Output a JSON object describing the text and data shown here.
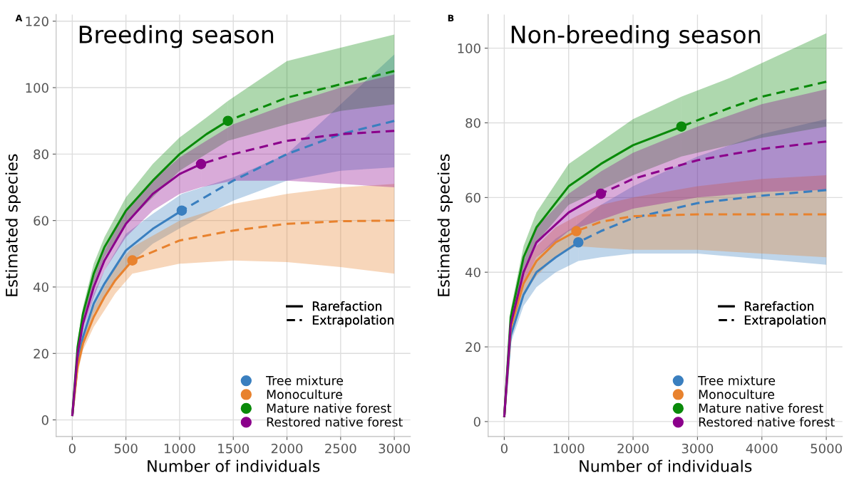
{
  "chart_data": [
    {
      "type": "line",
      "title": "Breeding season",
      "subtitle": "A",
      "xlabel": "Number of individuals",
      "ylabel": "Estimated species",
      "xlim": [
        -150,
        3150
      ],
      "ylim": [
        -5,
        122
      ],
      "xticks": [
        0,
        500,
        1000,
        1500,
        2000,
        2500,
        3000
      ],
      "yticks": [
        0,
        20,
        40,
        60,
        80,
        100,
        120
      ],
      "grid": true,
      "legend": "bottom right",
      "annotations": [
        "Rarefaction",
        "Extrapolation"
      ],
      "series": [
        {
          "name": "Tree mixture",
          "color": "#3a7fbf",
          "line_style": "solid",
          "x": [
            1,
            50,
            100,
            200,
            300,
            500,
            750,
            1020
          ],
          "values": [
            1.5,
            17,
            25,
            35,
            41,
            51,
            57.5,
            63
          ],
          "lower": [
            1.5,
            15,
            22,
            32,
            37,
            46,
            53,
            58
          ],
          "upper": [
            1.5,
            19,
            27,
            38,
            45,
            56,
            62,
            68
          ]
        },
        {
          "color": "#3a7fbf",
          "line_style": "dashed",
          "x": [
            1020,
            1500,
            2000,
            2500,
            3000
          ],
          "values": [
            63,
            72,
            80,
            86,
            90
          ],
          "lower": [
            58,
            66,
            72,
            75,
            76
          ],
          "upper": [
            68,
            73,
            80,
            95,
            110
          ]
        },
        {
          "type": "scatter",
          "color": "#3a7fbf",
          "marker": "circle",
          "x": [
            1020
          ],
          "values": [
            63
          ]
        },
        {
          "name": "Monoculture",
          "color": "#e8822e",
          "line_style": "solid",
          "x": [
            1,
            50,
            100,
            200,
            300,
            400,
            560
          ],
          "values": [
            1.5,
            16,
            23,
            31,
            37,
            42,
            48
          ],
          "lower": [
            1.5,
            14,
            21,
            28,
            33,
            38,
            44
          ],
          "upper": [
            1.5,
            18,
            25,
            34,
            40,
            46,
            52
          ]
        },
        {
          "color": "#e8822e",
          "line_style": "dashed",
          "x": [
            560,
            1000,
            1500,
            2000,
            2500,
            3000
          ],
          "values": [
            48,
            54,
            57,
            59,
            59.8,
            60
          ],
          "lower": [
            44,
            47,
            48,
            47.5,
            46,
            44
          ],
          "upper": [
            52,
            60,
            65,
            68,
            70,
            71
          ]
        },
        {
          "type": "scatter",
          "color": "#e8822e",
          "marker": "circle",
          "x": [
            560
          ],
          "values": [
            48
          ]
        },
        {
          "name": "Mature native forest",
          "color": "#0a8a0a",
          "line_style": "solid",
          "x": [
            1,
            50,
            100,
            200,
            300,
            500,
            750,
            1000,
            1250,
            1450
          ],
          "values": [
            1.5,
            22,
            32,
            44,
            52,
            63,
            72,
            80,
            86,
            90
          ],
          "lower": [
            1.5,
            20,
            30,
            41,
            49,
            59,
            67,
            75,
            80,
            84
          ],
          "upper": [
            1.5,
            24,
            34,
            47,
            55,
            67,
            77,
            85,
            91,
            96
          ]
        },
        {
          "color": "#0a8a0a",
          "line_style": "dashed",
          "x": [
            1450,
            2000,
            2500,
            3000
          ],
          "values": [
            90,
            97,
            101,
            105
          ],
          "lower": [
            84,
            89,
            93,
            95
          ],
          "upper": [
            96,
            108,
            112,
            116
          ]
        },
        {
          "type": "scatter",
          "color": "#0a8a0a",
          "marker": "circle",
          "x": [
            1450
          ],
          "values": [
            90
          ]
        },
        {
          "name": "Restored native forest",
          "color": "#8b008b",
          "line_style": "solid",
          "x": [
            1,
            50,
            100,
            200,
            300,
            500,
            750,
            1000,
            1200
          ],
          "values": [
            1.5,
            20,
            29,
            40,
            48,
            59,
            68,
            74,
            77
          ],
          "lower": [
            1.5,
            18,
            27,
            37,
            45,
            55,
            63,
            68,
            70
          ],
          "upper": [
            1.5,
            22,
            31,
            43,
            51,
            63,
            72,
            79,
            83
          ]
        },
        {
          "color": "#8b008b",
          "line_style": "dashed",
          "x": [
            1200,
            1500,
            2000,
            2500,
            3000
          ],
          "values": [
            77,
            80,
            84,
            86,
            87
          ],
          "lower": [
            70,
            72,
            72,
            71,
            70
          ],
          "upper": [
            83,
            89,
            95,
            100,
            104
          ]
        },
        {
          "type": "scatter",
          "color": "#8b008b",
          "marker": "circle",
          "x": [
            1200
          ],
          "values": [
            77
          ]
        }
      ]
    },
    {
      "type": "line",
      "title": "Non-breeding season",
      "subtitle": "B",
      "xlabel": "Number of individuals",
      "ylabel": "Estimated species",
      "xlim": [
        -250,
        5250
      ],
      "ylim": [
        -4,
        109
      ],
      "xticks": [
        0,
        1000,
        2000,
        3000,
        4000,
        5000
      ],
      "yticks": [
        0,
        20,
        40,
        60,
        80,
        100
      ],
      "grid": true,
      "legend": "bottom right",
      "annotations": [
        "Rarefaction",
        "Extrapolation"
      ],
      "series": [
        {
          "name": "Tree mixture",
          "color": "#3a7fbf",
          "line_style": "solid",
          "x": [
            1,
            100,
            300,
            500,
            800,
            1150
          ],
          "values": [
            1.5,
            23,
            34,
            40,
            44,
            48
          ],
          "lower": [
            1.5,
            21,
            31,
            36,
            40,
            43
          ],
          "upper": [
            1.5,
            25,
            37,
            44,
            49,
            53
          ]
        },
        {
          "color": "#3a7fbf",
          "line_style": "dashed",
          "x": [
            1150,
            1500,
            2000,
            3000,
            4000,
            5000
          ],
          "values": [
            48,
            51,
            54.5,
            58.5,
            60.5,
            62
          ],
          "lower": [
            43,
            44,
            45,
            45,
            43.5,
            42
          ],
          "upper": [
            53,
            58,
            63,
            71,
            77,
            81
          ]
        },
        {
          "type": "scatter",
          "color": "#3a7fbf",
          "marker": "circle",
          "x": [
            1150
          ],
          "values": [
            48
          ]
        },
        {
          "name": "Monoculture",
          "color": "#e8822e",
          "line_style": "solid",
          "x": [
            1,
            100,
            300,
            500,
            800,
            1120
          ],
          "values": [
            1.5,
            25,
            37,
            43,
            48,
            51
          ],
          "lower": [
            1.5,
            23,
            34,
            39,
            44,
            47
          ],
          "upper": [
            1.5,
            27,
            40,
            47,
            52,
            55
          ]
        },
        {
          "color": "#e8822e",
          "line_style": "dashed",
          "x": [
            1120,
            1500,
            2000,
            3000,
            4000,
            5000
          ],
          "values": [
            51,
            53.5,
            55,
            55.5,
            55.5,
            55.5
          ],
          "lower": [
            47,
            46.5,
            46,
            46,
            45,
            44
          ],
          "upper": [
            55,
            58,
            60,
            63,
            65,
            66
          ]
        },
        {
          "type": "scatter",
          "color": "#e8822e",
          "marker": "circle",
          "x": [
            1120
          ],
          "values": [
            51
          ]
        },
        {
          "name": "Mature native forest",
          "color": "#0a8a0a",
          "line_style": "solid",
          "x": [
            1,
            100,
            300,
            500,
            1000,
            1500,
            2000,
            2750
          ],
          "values": [
            1.5,
            28,
            44,
            52,
            63,
            69,
            74,
            79
          ],
          "lower": [
            1.5,
            26,
            41,
            48,
            58,
            62,
            66,
            71
          ],
          "upper": [
            1.5,
            30,
            47,
            56,
            69,
            75,
            81,
            87
          ]
        },
        {
          "color": "#0a8a0a",
          "line_style": "dashed",
          "x": [
            2750,
            3500,
            4000,
            5000
          ],
          "values": [
            79,
            84,
            87,
            91
          ],
          "lower": [
            71,
            74,
            76,
            79
          ],
          "upper": [
            87,
            92,
            96,
            104
          ]
        },
        {
          "type": "scatter",
          "color": "#0a8a0a",
          "marker": "circle",
          "x": [
            2750
          ],
          "values": [
            79
          ]
        },
        {
          "name": "Restored native forest",
          "color": "#8b008b",
          "line_style": "solid",
          "x": [
            1,
            100,
            300,
            500,
            1000,
            1500
          ],
          "values": [
            1.5,
            26,
            40,
            48,
            56,
            61
          ],
          "lower": [
            1.5,
            24,
            37,
            44,
            51,
            54
          ],
          "upper": [
            1.5,
            28,
            43,
            52,
            61,
            67
          ]
        },
        {
          "color": "#8b008b",
          "line_style": "dashed",
          "x": [
            1500,
            2000,
            3000,
            4000,
            5000
          ],
          "values": [
            61,
            65,
            70,
            73,
            75
          ],
          "lower": [
            54,
            57,
            60,
            61.5,
            62
          ],
          "upper": [
            67,
            72,
            79,
            85,
            89
          ]
        },
        {
          "type": "scatter",
          "color": "#8b008b",
          "marker": "circle",
          "x": [
            1500
          ],
          "values": [
            61
          ]
        }
      ]
    }
  ]
}
